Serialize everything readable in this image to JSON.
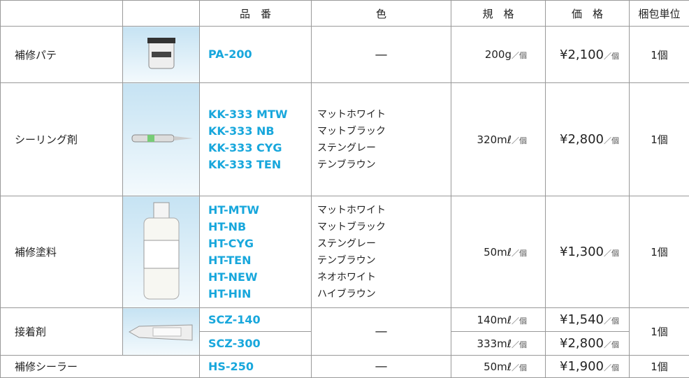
{
  "header": {
    "part": "品　番",
    "color": "色",
    "spec": "規　格",
    "price": "価　格",
    "unit": "梱包単位"
  },
  "rows": [
    {
      "name": "補修パテ",
      "parts": [
        "PA-200"
      ],
      "colors": [
        "—"
      ],
      "specs": [
        {
          "amount": "200g",
          "per": "／個"
        }
      ],
      "prices": [
        {
          "amount": "¥2,100",
          "per": "／個"
        }
      ],
      "unit": "1個"
    },
    {
      "name": "シーリング剤",
      "parts": [
        "KK-333 MTW",
        "KK-333 NB",
        "KK-333 CYG",
        "KK-333 TEN"
      ],
      "colors": [
        "マットホワイト",
        "マットブラック",
        "ステングレー",
        "テンブラウン"
      ],
      "specs": [
        {
          "amount": "320mℓ",
          "per": "／個"
        }
      ],
      "prices": [
        {
          "amount": "¥2,800",
          "per": "／個"
        }
      ],
      "unit": "1個"
    },
    {
      "name": "補修塗料",
      "parts": [
        "HT-MTW",
        "HT-NB",
        "HT-CYG",
        "HT-TEN",
        "HT-NEW",
        "HT-HIN"
      ],
      "colors": [
        "マットホワイト",
        "マットブラック",
        "ステングレー",
        "テンブラウン",
        "ネオホワイト",
        "ハイブラウン"
      ],
      "specs": [
        {
          "amount": "50mℓ",
          "per": "／個"
        }
      ],
      "prices": [
        {
          "amount": "¥1,300",
          "per": "／個"
        }
      ],
      "unit": "1個"
    },
    {
      "name": "接着剤",
      "parts": [
        "SCZ-140",
        "SCZ-300"
      ],
      "colors": [
        "—"
      ],
      "specs": [
        {
          "amount": "140mℓ",
          "per": "／個"
        },
        {
          "amount": "333mℓ",
          "per": "／個"
        }
      ],
      "prices": [
        {
          "amount": "¥1,540",
          "per": "／個"
        },
        {
          "amount": "¥2,800",
          "per": "／個"
        }
      ],
      "unit": "1個"
    },
    {
      "name": "補修シーラー",
      "parts": [
        "HS-250"
      ],
      "colors": [
        "—"
      ],
      "specs": [
        {
          "amount": "50mℓ",
          "per": "／個"
        }
      ],
      "prices": [
        {
          "amount": "¥1,900",
          "per": "／個"
        }
      ],
      "unit": "1個"
    }
  ]
}
